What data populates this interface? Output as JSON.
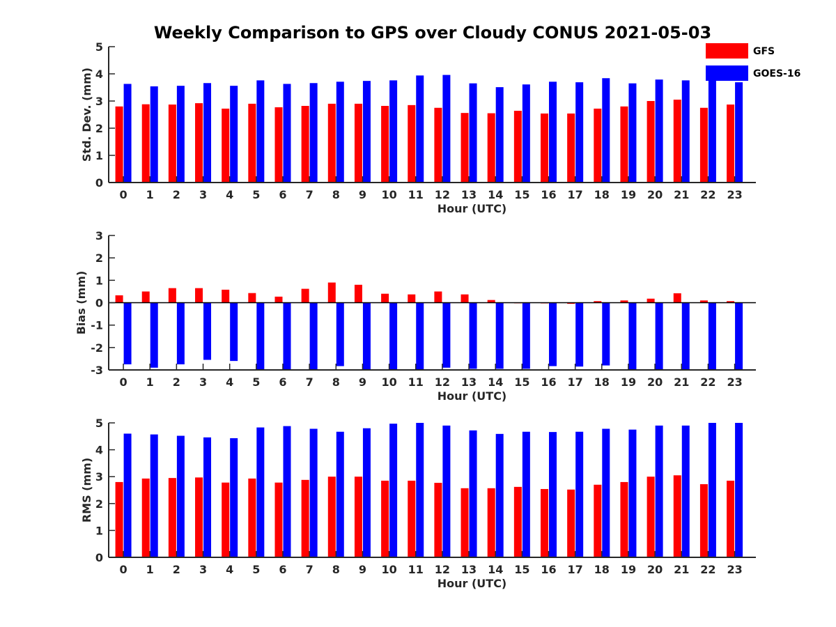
{
  "figure_title": "Weekly Comparison to GPS over Cloudy CONUS 2021-05-03",
  "legend": [
    {
      "label": "GFS",
      "color": "#ff0000"
    },
    {
      "label": "GOES-16",
      "color": "#0000ff"
    }
  ],
  "chart_data": [
    {
      "type": "bar",
      "title": "Weekly Comparison to GPS over Cloudy CONUS 2021-05-03",
      "xlabel": "Hour (UTC)",
      "ylabel": "Std. Dev. (mm)",
      "ylim": [
        0,
        5
      ],
      "yticks": [
        0,
        1,
        2,
        3,
        4,
        5
      ],
      "categories": [
        "0",
        "1",
        "2",
        "3",
        "4",
        "5",
        "6",
        "7",
        "8",
        "9",
        "10",
        "11",
        "12",
        "13",
        "14",
        "15",
        "16",
        "17",
        "18",
        "19",
        "20",
        "21",
        "22",
        "23"
      ],
      "series": [
        {
          "name": "GFS",
          "color": "#ff0000",
          "values": [
            2.8,
            2.88,
            2.87,
            2.92,
            2.72,
            2.9,
            2.77,
            2.82,
            2.9,
            2.9,
            2.82,
            2.85,
            2.75,
            2.56,
            2.55,
            2.64,
            2.54,
            2.54,
            2.72,
            2.8,
            3.0,
            3.05,
            2.75,
            2.87
          ]
        },
        {
          "name": "GOES-16",
          "color": "#0000ff",
          "values": [
            3.63,
            3.54,
            3.56,
            3.66,
            3.56,
            3.76,
            3.63,
            3.66,
            3.71,
            3.74,
            3.76,
            3.94,
            3.96,
            3.65,
            3.51,
            3.61,
            3.71,
            3.69,
            3.84,
            3.65,
            3.79,
            3.76,
            3.76,
            3.69
          ]
        }
      ]
    },
    {
      "type": "bar",
      "xlabel": "Hour (UTC)",
      "ylabel": "Bias (mm)",
      "ylim": [
        -3,
        3
      ],
      "yticks": [
        -3,
        -2,
        -1,
        0,
        1,
        2,
        3
      ],
      "categories": [
        "0",
        "1",
        "2",
        "3",
        "4",
        "5",
        "6",
        "7",
        "8",
        "9",
        "10",
        "11",
        "12",
        "13",
        "14",
        "15",
        "16",
        "17",
        "18",
        "19",
        "20",
        "21",
        "22",
        "23"
      ],
      "series": [
        {
          "name": "GFS",
          "color": "#ff0000",
          "values": [
            0.33,
            0.5,
            0.65,
            0.65,
            0.58,
            0.43,
            0.27,
            0.62,
            0.9,
            0.8,
            0.4,
            0.37,
            0.5,
            0.37,
            0.12,
            -0.02,
            -0.03,
            -0.05,
            0.07,
            0.1,
            0.18,
            0.42,
            0.1,
            0.07
          ]
        },
        {
          "name": "GOES-16",
          "color": "#0000ff",
          "values": [
            -2.75,
            -2.9,
            -2.75,
            -2.55,
            -2.6,
            -3.0,
            -3.0,
            -3.0,
            -2.83,
            -3.0,
            -3.0,
            -3.0,
            -2.9,
            -2.95,
            -2.95,
            -2.95,
            -2.83,
            -2.85,
            -2.8,
            -3.0,
            -3.0,
            -3.0,
            -3.0,
            -3.0
          ]
        }
      ]
    },
    {
      "type": "bar",
      "xlabel": "Hour (UTC)",
      "ylabel": "RMS (mm)",
      "ylim": [
        0,
        5
      ],
      "yticks": [
        0,
        1,
        2,
        3,
        4,
        5
      ],
      "categories": [
        "0",
        "1",
        "2",
        "3",
        "4",
        "5",
        "6",
        "7",
        "8",
        "9",
        "10",
        "11",
        "12",
        "13",
        "14",
        "15",
        "16",
        "17",
        "18",
        "19",
        "20",
        "21",
        "22",
        "23"
      ],
      "series": [
        {
          "name": "GFS",
          "color": "#ff0000",
          "values": [
            2.8,
            2.93,
            2.95,
            2.97,
            2.78,
            2.93,
            2.78,
            2.88,
            3.0,
            3.0,
            2.85,
            2.85,
            2.77,
            2.57,
            2.57,
            2.62,
            2.54,
            2.52,
            2.7,
            2.8,
            3.0,
            3.05,
            2.72,
            2.85
          ]
        },
        {
          "name": "GOES-16",
          "color": "#0000ff",
          "values": [
            4.6,
            4.57,
            4.52,
            4.46,
            4.43,
            4.83,
            4.88,
            4.78,
            4.67,
            4.8,
            4.97,
            5.0,
            4.9,
            4.72,
            4.59,
            4.67,
            4.66,
            4.67,
            4.78,
            4.75,
            4.9,
            4.9,
            5.0,
            5.0
          ]
        }
      ]
    }
  ]
}
